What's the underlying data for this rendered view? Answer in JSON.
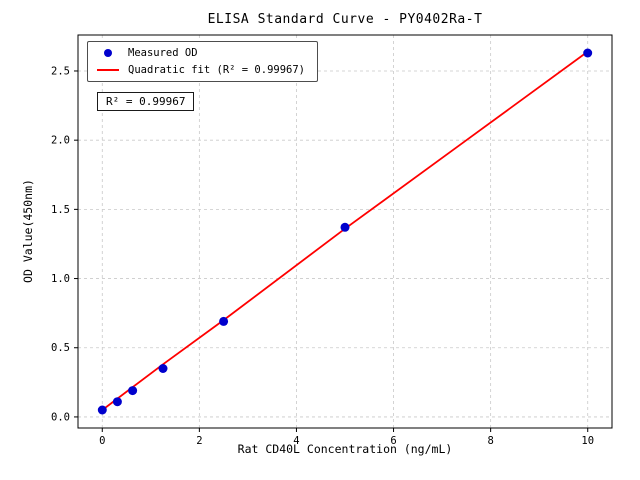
{
  "figure": {
    "annotation": "R² = 0.99967"
  },
  "legend": {
    "items": [
      {
        "label": "Measured OD",
        "marker": "dot",
        "color": "#0000cd"
      },
      {
        "label": "Quadratic fit (R² = 0.99967)",
        "marker": "line",
        "color": "#ff0000"
      }
    ]
  },
  "chart_data": {
    "type": "scatter",
    "title": "ELISA Standard Curve - PY0402Ra-T",
    "xlabel": "Rat CD40L Concentration (ng/mL)",
    "ylabel": "OD Value(450nm)",
    "xlim": [
      -0.5,
      10.5
    ],
    "ylim": [
      -0.08,
      2.76
    ],
    "xticks": [
      0,
      2,
      4,
      6,
      8,
      10
    ],
    "xtick_labels": [
      "0",
      "2",
      "4",
      "6",
      "8",
      "10"
    ],
    "yticks": [
      0.0,
      0.5,
      1.0,
      1.5,
      2.0,
      2.5
    ],
    "ytick_labels": [
      "0.0",
      "0.5",
      "1.0",
      "1.5",
      "2.0",
      "2.5"
    ],
    "grid": true,
    "legend_position": "upper left",
    "series": [
      {
        "name": "Measured OD",
        "type": "scatter",
        "color": "#0000cd",
        "x": [
          0,
          0.3125,
          0.625,
          1.25,
          2.5,
          5,
          10
        ],
        "y": [
          0.05,
          0.11,
          0.19,
          0.35,
          0.69,
          1.37,
          2.63
        ]
      },
      {
        "name": "Quadratic fit (R² = 0.99967)",
        "type": "line",
        "color": "#ff0000",
        "x": [
          0,
          1.25,
          2.5,
          5,
          7.5,
          10
        ],
        "y": [
          0.05,
          0.38,
          0.7,
          1.36,
          2.0,
          2.64
        ]
      }
    ],
    "annotation": "R² = 0.99967"
  }
}
